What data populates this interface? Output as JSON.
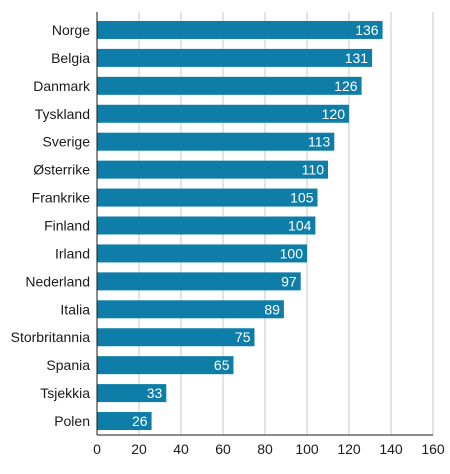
{
  "chart_data": {
    "type": "bar",
    "orientation": "horizontal",
    "categories": [
      "Norge",
      "Belgia",
      "Danmark",
      "Tyskland",
      "Sverige",
      "Østerrike",
      "Frankrike",
      "Finland",
      "Irland",
      "Nederland",
      "Italia",
      "Storbritannia",
      "Spania",
      "Tsjekkia",
      "Polen"
    ],
    "values": [
      136,
      131,
      126,
      120,
      113,
      110,
      105,
      104,
      100,
      97,
      89,
      75,
      65,
      33,
      26
    ],
    "xlim": [
      0,
      160
    ],
    "xticks": [
      0,
      20,
      40,
      60,
      80,
      100,
      120,
      140,
      160
    ],
    "grid": "vertical",
    "bar_color": "#0e7ea8",
    "data_labels": "inside-end",
    "title": "",
    "xlabel": "",
    "ylabel": ""
  }
}
